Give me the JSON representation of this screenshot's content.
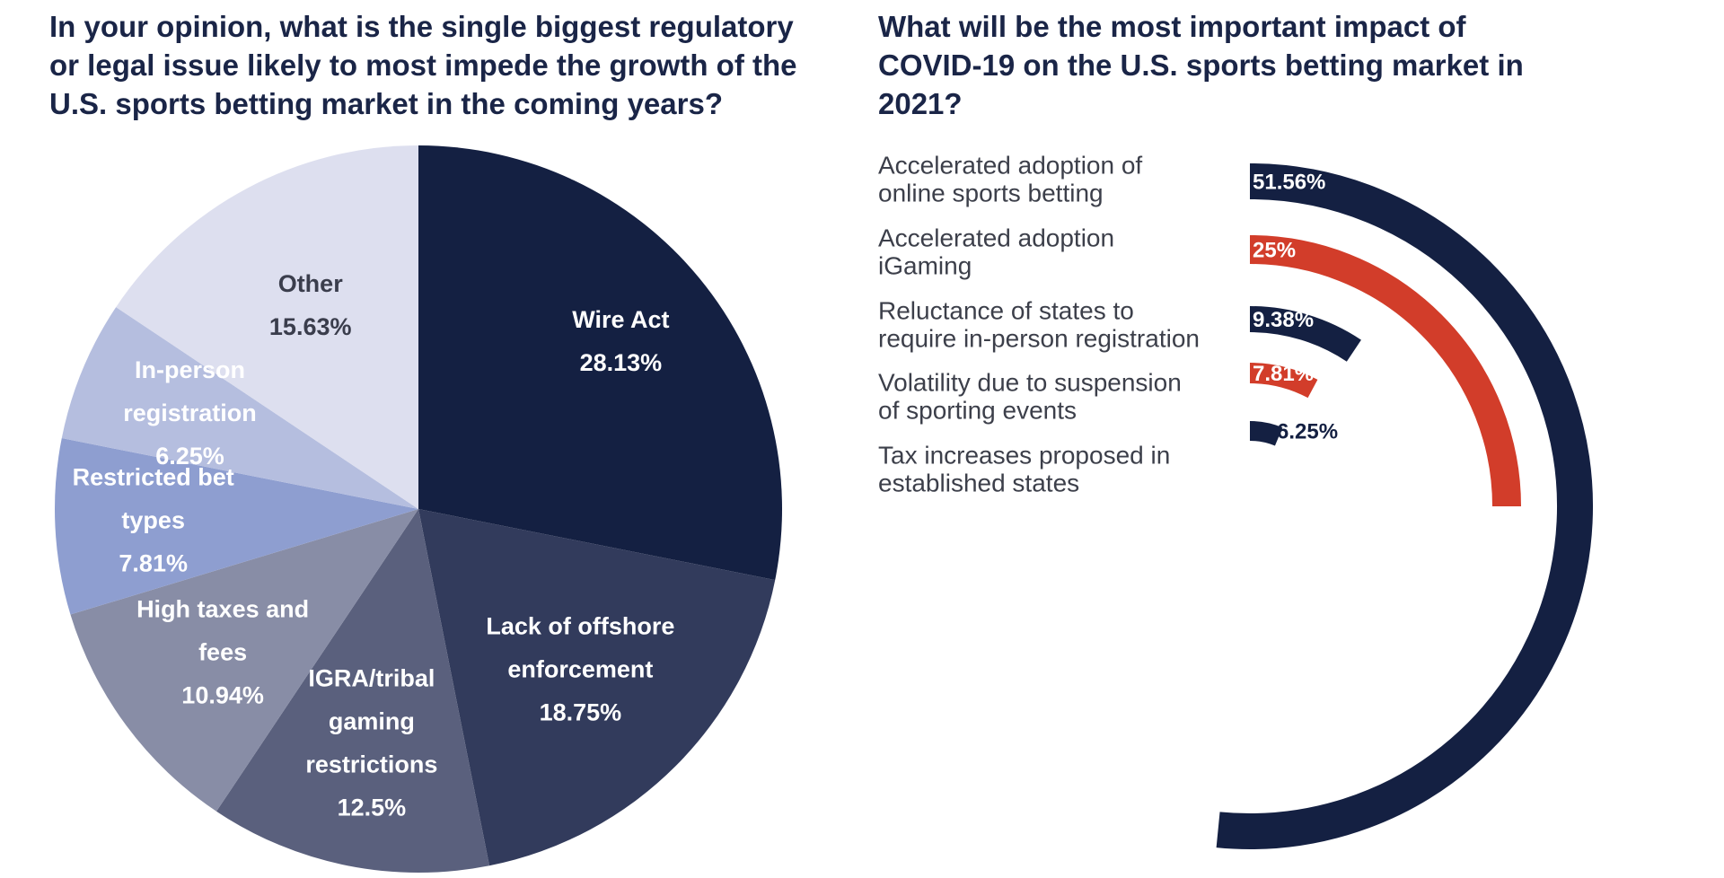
{
  "chart_data": [
    {
      "type": "pie",
      "title": "In your opinion, what is the single biggest regulatory\nor legal issue likely to most impede the growth of the\nU.S. sports betting market in the coming years?",
      "slices": [
        {
          "label": "Wire Act",
          "label_lines": [
            "Wire Act"
          ],
          "value": 28.13,
          "value_label": "28.13%",
          "color": "#142042"
        },
        {
          "label": "Lack of offshore enforcement",
          "label_lines": [
            "Lack of offshore",
            "enforcement"
          ],
          "value": 18.75,
          "value_label": "18.75%",
          "color": "#323b5c"
        },
        {
          "label": "IGRA/tribal gaming restrictions",
          "label_lines": [
            "IGRA/tribal",
            "gaming",
            "restrictions"
          ],
          "value": 12.5,
          "value_label": "12.5%",
          "color": "#5a607d"
        },
        {
          "label": "High taxes and fees",
          "label_lines": [
            "High taxes and",
            "fees"
          ],
          "value": 10.94,
          "value_label": "10.94%",
          "color": "#888da6"
        },
        {
          "label": "Restricted bet types",
          "label_lines": [
            "Restricted bet",
            "types"
          ],
          "value": 7.81,
          "value_label": "7.81%",
          "color": "#8e9ed0"
        },
        {
          "label": "In-person registration",
          "label_lines": [
            "In-person",
            "registration"
          ],
          "value": 6.25,
          "value_label": "6.25%",
          "color": "#b5bedf"
        },
        {
          "label": "Other",
          "label_lines": [
            "Other"
          ],
          "value": 15.63,
          "value_label": "15.63%",
          "color": "#dddfef"
        }
      ]
    },
    {
      "type": "radial-bar",
      "title": "What will be the most important impact of\nCOVID-19 on the U.S. sports betting market in\n2021?",
      "max_value": 100,
      "series": [
        {
          "label": "Accelerated adoption of online sports betting",
          "label_lines": [
            "Accelerated adoption of",
            "online sports betting"
          ],
          "value": 51.56,
          "value_label": "51.56%",
          "color": "#142042"
        },
        {
          "label": "Accelerated adoption iGaming",
          "label_lines": [
            "Accelerated adoption",
            "iGaming"
          ],
          "value": 25,
          "value_label": "25%",
          "color": "#d23d2a"
        },
        {
          "label": "Reluctance of states to require in-person registration",
          "label_lines": [
            "Reluctance of states to",
            "require in-person registration"
          ],
          "value": 9.38,
          "value_label": "9.38%",
          "color": "#142042"
        },
        {
          "label": "Volatility due to suspension of sporting events",
          "label_lines": [
            "Volatility due to suspension",
            "of sporting events"
          ],
          "value": 7.81,
          "value_label": "7.81%",
          "color": "#d23d2a"
        },
        {
          "label": "Tax increases proposed in established states",
          "label_lines": [
            "Tax increases proposed in",
            "established states"
          ],
          "value": 6.25,
          "value_label": "6.25%",
          "color": "#142042"
        }
      ]
    }
  ]
}
